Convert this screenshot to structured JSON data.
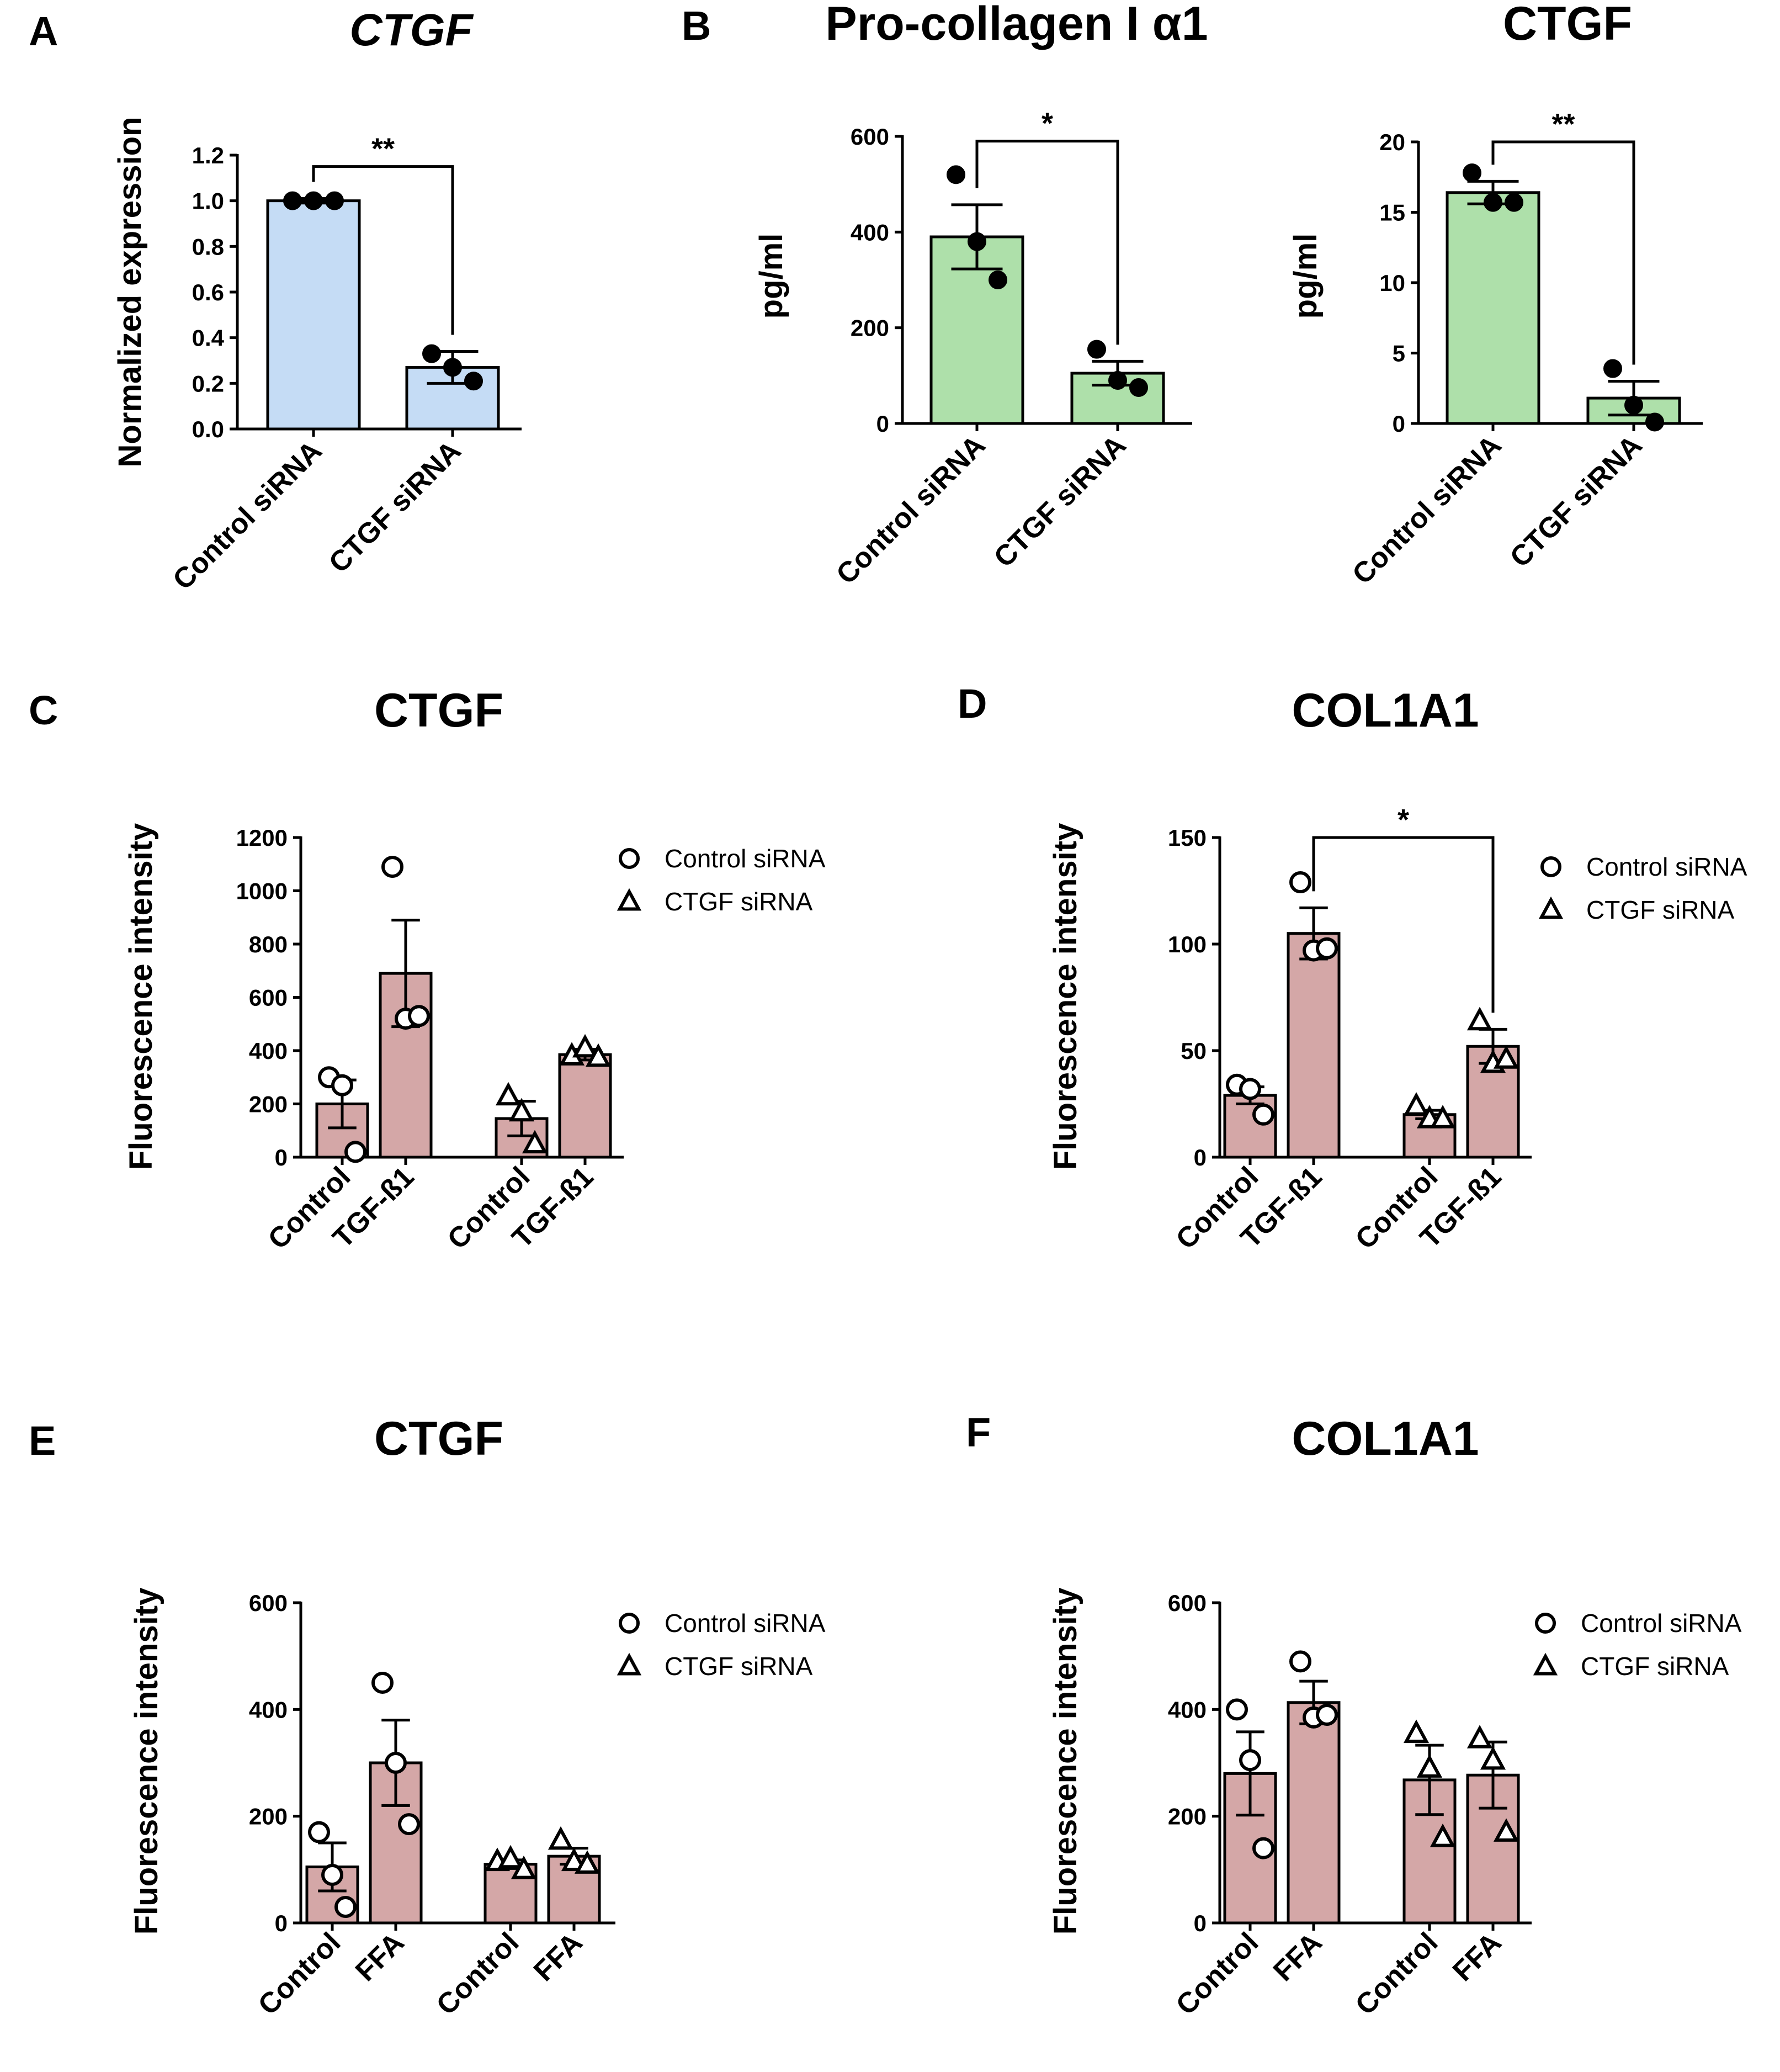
{
  "colors": {
    "blue_bar": "#c5dcf5",
    "green_bar": "#aee0aa",
    "pink_bar": "#d4a7a7",
    "axis": "#000000"
  },
  "chart_data": [
    {
      "id": "A",
      "panel_label": "A",
      "type": "bar",
      "title": "CTGF",
      "title_style": "italic",
      "ylabel": "Normalized expression",
      "ylim": [
        0,
        1.2
      ],
      "yticks": [
        "0.0",
        "0.2",
        "0.4",
        "0.6",
        "0.8",
        "1.0",
        "1.2"
      ],
      "categories": [
        "Control siRNA",
        "CTGF siRNA"
      ],
      "values": [
        1.0,
        0.27
      ],
      "sem": [
        0.01,
        0.07
      ],
      "points": [
        [
          1.0,
          1.0,
          1.0
        ],
        [
          0.33,
          0.27,
          0.21
        ]
      ],
      "marker": "filled-circle",
      "bar_color": "blue_bar",
      "significance": [
        {
          "from": 0,
          "to": 1,
          "label": "**",
          "at": 1.15
        }
      ]
    },
    {
      "id": "B1",
      "panel_label": "B",
      "type": "bar",
      "title": "Pro-collagen I α1",
      "ylabel": "pg/ml",
      "ylim": [
        0,
        600
      ],
      "yticks": [
        "0",
        "200",
        "400",
        "600"
      ],
      "categories": [
        "Control siRNA",
        "CTGF siRNA"
      ],
      "values": [
        390,
        105
      ],
      "sem": [
        67,
        25
      ],
      "points": [
        [
          520,
          380,
          300
        ],
        [
          155,
          90,
          75
        ]
      ],
      "marker": "filled-circle",
      "bar_color": "green_bar",
      "significance": [
        {
          "from": 0,
          "to": 1,
          "label": "*",
          "at": 590
        }
      ]
    },
    {
      "id": "B2",
      "panel_label": "",
      "type": "bar",
      "title": "CTGF",
      "ylabel": "pg/ml",
      "ylim": [
        0,
        20
      ],
      "yticks": [
        "0",
        "5",
        "10",
        "15",
        "20"
      ],
      "categories": [
        "Control siRNA",
        "CTGF siRNA"
      ],
      "values": [
        16.4,
        1.8
      ],
      "sem": [
        0.8,
        1.2
      ],
      "points": [
        [
          17.8,
          15.7,
          15.7
        ],
        [
          3.9,
          1.3,
          0.1
        ]
      ],
      "marker": "filled-circle",
      "bar_color": "green_bar",
      "significance": [
        {
          "from": 0,
          "to": 1,
          "label": "**",
          "at": 20
        }
      ]
    },
    {
      "id": "C",
      "panel_label": "C",
      "type": "bar",
      "title": "CTGF",
      "ylabel": "Fluorescence intensity",
      "ylim": [
        0,
        1200
      ],
      "yticks": [
        "0",
        "200",
        "400",
        "600",
        "800",
        "1000",
        "1200"
      ],
      "categories": [
        "Control",
        "TGF-ß1",
        "Control",
        "TGF-ß1"
      ],
      "values": [
        200,
        690,
        145,
        385
      ],
      "sem": [
        90,
        200,
        65,
        20
      ],
      "points": [
        [
          300,
          270,
          20
        ],
        [
          1090,
          520,
          530
        ],
        [
          230,
          170,
          50
        ],
        [
          380,
          410,
          375
        ]
      ],
      "markers": [
        "open-circle",
        "open-circle",
        "open-triangle",
        "open-triangle"
      ],
      "bar_color": "pink_bar",
      "legend": [
        {
          "marker": "open-circle",
          "label": "Control siRNA"
        },
        {
          "marker": "open-triangle",
          "label": "CTGF siRNA"
        }
      ],
      "significance": []
    },
    {
      "id": "D",
      "panel_label": "D",
      "type": "bar",
      "title": "COL1A1",
      "ylabel": "Fluorescence intensity",
      "ylim": [
        0,
        150
      ],
      "yticks": [
        "0",
        "50",
        "100",
        "150"
      ],
      "categories": [
        "Control",
        "TGF-ß1",
        "Control",
        "TGF-ß1"
      ],
      "values": [
        29,
        105,
        20,
        52
      ],
      "sem": [
        4,
        12,
        2,
        8
      ],
      "points": [
        [
          34,
          32,
          20
        ],
        [
          129,
          97,
          98
        ],
        [
          24,
          18,
          18
        ],
        [
          64,
          44,
          46
        ]
      ],
      "markers": [
        "open-circle",
        "open-circle",
        "open-triangle",
        "open-triangle"
      ],
      "bar_color": "pink_bar",
      "legend": [
        {
          "marker": "open-circle",
          "label": "Control siRNA"
        },
        {
          "marker": "open-triangle",
          "label": "CTGF siRNA"
        }
      ],
      "significance": [
        {
          "from": 1,
          "to": 3,
          "label": "*",
          "at": 150
        }
      ]
    },
    {
      "id": "E",
      "panel_label": "E",
      "type": "bar",
      "title": "CTGF",
      "ylabel": "Fluorescence intensity",
      "ylim": [
        0,
        600
      ],
      "yticks": [
        "0",
        "200",
        "400",
        "600"
      ],
      "categories": [
        "Control",
        "FFA",
        "Control",
        "FFA"
      ],
      "values": [
        105,
        300,
        110,
        125
      ],
      "sem": [
        45,
        80,
        8,
        15
      ],
      "points": [
        [
          170,
          90,
          30
        ],
        [
          450,
          300,
          185
        ],
        [
          115,
          120,
          100
        ],
        [
          155,
          115,
          110
        ]
      ],
      "markers": [
        "open-circle",
        "open-circle",
        "open-triangle",
        "open-triangle"
      ],
      "bar_color": "pink_bar",
      "legend": [
        {
          "marker": "open-circle",
          "label": "Control siRNA"
        },
        {
          "marker": "open-triangle",
          "label": "CTGF siRNA"
        }
      ],
      "significance": []
    },
    {
      "id": "F",
      "panel_label": "F",
      "type": "bar",
      "title": "COL1A1",
      "ylabel": "Fluorescence intensity",
      "ylim": [
        0,
        600
      ],
      "yticks": [
        "0",
        "200",
        "400",
        "600"
      ],
      "categories": [
        "Control",
        "FFA",
        "Control",
        "FFA"
      ],
      "values": [
        280,
        413,
        268,
        277
      ],
      "sem": [
        78,
        40,
        65,
        62
      ],
      "points": [
        [
          400,
          305,
          140
        ],
        [
          490,
          385,
          390
        ],
        [
          355,
          290,
          160
        ],
        [
          345,
          305,
          170
        ]
      ],
      "markers": [
        "open-circle",
        "open-circle",
        "open-triangle",
        "open-triangle"
      ],
      "bar_color": "pink_bar",
      "legend": [
        {
          "marker": "open-circle",
          "label": "Control siRNA"
        },
        {
          "marker": "open-triangle",
          "label": "CTGF siRNA"
        }
      ],
      "significance": []
    }
  ]
}
